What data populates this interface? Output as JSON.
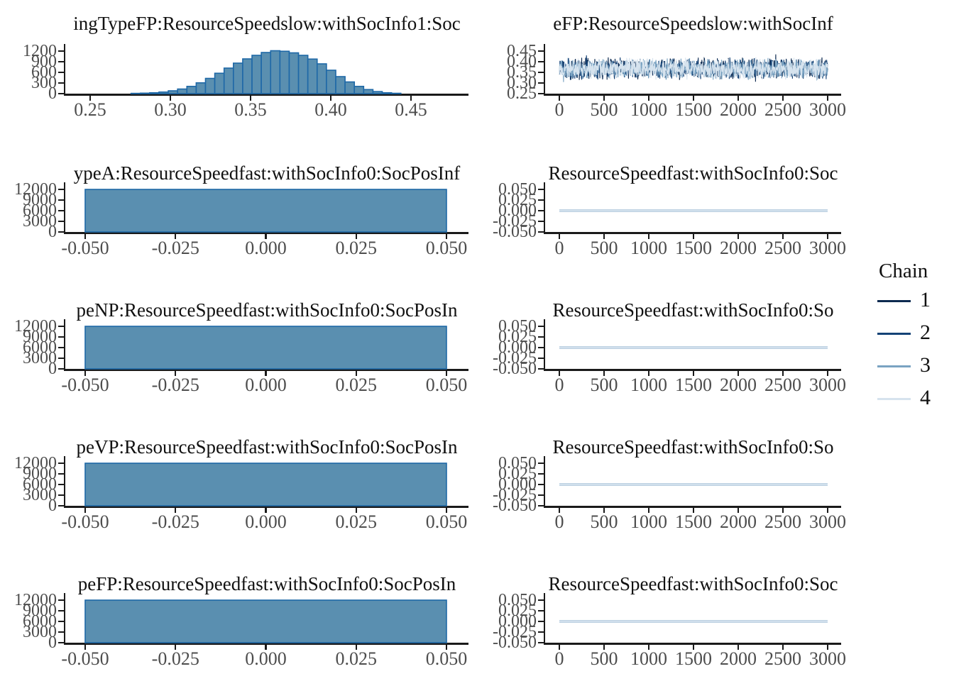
{
  "legend": {
    "title": "Chain",
    "entries": [
      {
        "label": "1",
        "color": "#0d2a50"
      },
      {
        "label": "2",
        "color": "#144276"
      },
      {
        "label": "3",
        "color": "#7aa3c2"
      },
      {
        "label": "4",
        "color": "#d6e3ee"
      }
    ]
  },
  "style": {
    "background": "#ffffff",
    "hist_fill": "#5a8fb0",
    "hist_stroke": "#1e68a7",
    "axis_color": "#1a1a1a",
    "tick_label_color": "#4d4d4d",
    "title_color": "#111111",
    "flat_line_outer": "#a9c4d9",
    "flat_line_inner": "#d6e3ee"
  },
  "chart_data": [
    {
      "panel": "row1-histogram",
      "type": "histogram",
      "title": "ingTypeFP:ResourceSpeedslow:withSocInfo1:Soc",
      "x_ticks": {
        "labels": [
          "0.25",
          "0.30",
          "0.35",
          "0.40",
          "0.45"
        ],
        "values": [
          0.25,
          0.3,
          0.35,
          0.4,
          0.45
        ]
      },
      "y_ticks": {
        "labels": [
          "1200",
          "900",
          "600",
          "300",
          "0"
        ],
        "values": [
          1200,
          900,
          600,
          300,
          0
        ]
      },
      "bins": {
        "start": 0.2755,
        "width": 0.0058,
        "counts": [
          8,
          14,
          25,
          45,
          80,
          130,
          205,
          305,
          430,
          575,
          720,
          860,
          980,
          1080,
          1160,
          1210,
          1195,
          1150,
          1080,
          975,
          840,
          660,
          480,
          330,
          205,
          115,
          58,
          25,
          10
        ]
      },
      "xlabel": "",
      "ylabel": "",
      "grid": false,
      "legend_position": "none"
    },
    {
      "panel": "row1-trace",
      "type": "line",
      "title": "eFP:ResourceSpeedslow:withSocInf",
      "x_ticks": {
        "labels": [
          "0",
          "500",
          "1000",
          "1500",
          "2000",
          "2500",
          "3000"
        ],
        "values": [
          0,
          500,
          1000,
          1500,
          2000,
          2500,
          3000
        ]
      },
      "y_ticks": {
        "labels": [
          "0.45",
          "0.40",
          "0.35",
          "0.30",
          "0.25"
        ],
        "values": [
          0.45,
          0.4,
          0.35,
          0.3,
          0.25
        ]
      },
      "series": [
        {
          "name": "1",
          "seed": 11,
          "mean": 0.367
        },
        {
          "name": "2",
          "seed": 22,
          "mean": 0.368
        },
        {
          "name": "3",
          "seed": 33,
          "mean": 0.366
        },
        {
          "name": "4",
          "seed": 44,
          "mean": 0.3675
        }
      ],
      "noise_amplitude": 0.055,
      "n_iterations": 3000,
      "visual_band": [
        0.3,
        0.435
      ],
      "xlabel": "",
      "ylabel": "",
      "grid": false,
      "legend_position": "right"
    },
    {
      "panel": "row2-histogram",
      "type": "histogram",
      "title": "ypeA:ResourceSpeedfast:withSocInfo0:SocPosInf",
      "x_ticks": {
        "labels": [
          "-0.050",
          "-0.025",
          "0.000",
          "0.025",
          "0.050"
        ],
        "values": [
          -0.05,
          -0.025,
          0.0,
          0.025,
          0.05
        ]
      },
      "y_ticks": {
        "labels": [
          "12000",
          "9000",
          "6000",
          "3000",
          "0"
        ],
        "values": [
          12000,
          9000,
          6000,
          3000,
          0
        ]
      },
      "bins": {
        "start": -0.05,
        "width": 0.1,
        "counts": [
          12000
        ]
      },
      "xlabel": "",
      "ylabel": "",
      "grid": false,
      "legend_position": "none"
    },
    {
      "panel": "row2-trace",
      "type": "line",
      "title": "ResourceSpeedfast:withSocInfo0:Soc",
      "x_ticks": {
        "labels": [
          "0",
          "500",
          "1000",
          "1500",
          "2000",
          "2500",
          "3000"
        ],
        "values": [
          0,
          500,
          1000,
          1500,
          2000,
          2500,
          3000
        ]
      },
      "y_ticks": {
        "labels": [
          "0.050",
          "0.025",
          "0.000",
          "-0.025",
          "-0.050"
        ],
        "values": [
          0.05,
          0.025,
          0.0,
          -0.025,
          -0.05
        ]
      },
      "flat_value": 0.0,
      "n_iterations": 3000,
      "xlabel": "",
      "ylabel": "",
      "grid": false,
      "legend_position": "right"
    },
    {
      "panel": "row3-histogram",
      "type": "histogram",
      "title": "peNP:ResourceSpeedfast:withSocInfo0:SocPosIn",
      "x_ticks": {
        "labels": [
          "-0.050",
          "-0.025",
          "0.000",
          "0.025",
          "0.050"
        ],
        "values": [
          -0.05,
          -0.025,
          0.0,
          0.025,
          0.05
        ]
      },
      "y_ticks": {
        "labels": [
          "12000",
          "9000",
          "6000",
          "3000",
          "0"
        ],
        "values": [
          12000,
          9000,
          6000,
          3000,
          0
        ]
      },
      "bins": {
        "start": -0.05,
        "width": 0.1,
        "counts": [
          12000
        ]
      },
      "xlabel": "",
      "ylabel": "",
      "grid": false,
      "legend_position": "none"
    },
    {
      "panel": "row3-trace",
      "type": "line",
      "title": "ResourceSpeedfast:withSocInfo0:So",
      "x_ticks": {
        "labels": [
          "0",
          "500",
          "1000",
          "1500",
          "2000",
          "2500",
          "3000"
        ],
        "values": [
          0,
          500,
          1000,
          1500,
          2000,
          2500,
          3000
        ]
      },
      "y_ticks": {
        "labels": [
          "0.050",
          "0.025",
          "0.000",
          "-0.025",
          "-0.050"
        ],
        "values": [
          0.05,
          0.025,
          0.0,
          -0.025,
          -0.05
        ]
      },
      "flat_value": 0.0,
      "n_iterations": 3000,
      "xlabel": "",
      "ylabel": "",
      "grid": false,
      "legend_position": "right"
    },
    {
      "panel": "row4-histogram",
      "type": "histogram",
      "title": "peVP:ResourceSpeedfast:withSocInfo0:SocPosIn",
      "x_ticks": {
        "labels": [
          "-0.050",
          "-0.025",
          "0.000",
          "0.025",
          "0.050"
        ],
        "values": [
          -0.05,
          -0.025,
          0.0,
          0.025,
          0.05
        ]
      },
      "y_ticks": {
        "labels": [
          "12000",
          "9000",
          "6000",
          "3000",
          "0"
        ],
        "values": [
          12000,
          9000,
          6000,
          3000,
          0
        ]
      },
      "bins": {
        "start": -0.05,
        "width": 0.1,
        "counts": [
          12000
        ]
      },
      "xlabel": "",
      "ylabel": "",
      "grid": false,
      "legend_position": "none"
    },
    {
      "panel": "row4-trace",
      "type": "line",
      "title": "ResourceSpeedfast:withSocInfo0:So",
      "x_ticks": {
        "labels": [
          "0",
          "500",
          "1000",
          "1500",
          "2000",
          "2500",
          "3000"
        ],
        "values": [
          0,
          500,
          1000,
          1500,
          2000,
          2500,
          3000
        ]
      },
      "y_ticks": {
        "labels": [
          "0.050",
          "0.025",
          "0.000",
          "-0.025",
          "-0.050"
        ],
        "values": [
          0.05,
          0.025,
          0.0,
          -0.025,
          -0.05
        ]
      },
      "flat_value": 0.0,
      "n_iterations": 3000,
      "xlabel": "",
      "ylabel": "",
      "grid": false,
      "legend_position": "right"
    },
    {
      "panel": "row5-histogram",
      "type": "histogram",
      "title": "peFP:ResourceSpeedfast:withSocInfo0:SocPosIn",
      "x_ticks": {
        "labels": [
          "-0.050",
          "-0.025",
          "0.000",
          "0.025",
          "0.050"
        ],
        "values": [
          -0.05,
          -0.025,
          0.0,
          0.025,
          0.05
        ]
      },
      "y_ticks": {
        "labels": [
          "12000",
          "9000",
          "6000",
          "3000",
          "0"
        ],
        "values": [
          12000,
          9000,
          6000,
          3000,
          0
        ]
      },
      "bins": {
        "start": -0.05,
        "width": 0.1,
        "counts": [
          12000
        ]
      },
      "xlabel": "",
      "ylabel": "",
      "grid": false,
      "legend_position": "none"
    },
    {
      "panel": "row5-trace",
      "type": "line",
      "title": "ResourceSpeedfast:withSocInfo0:Soc",
      "x_ticks": {
        "labels": [
          "0",
          "500",
          "1000",
          "1500",
          "2000",
          "2500",
          "3000"
        ],
        "values": [
          0,
          500,
          1000,
          1500,
          2000,
          2500,
          3000
        ]
      },
      "y_ticks": {
        "labels": [
          "0.050",
          "0.025",
          "0.000",
          "-0.025",
          "-0.050"
        ],
        "values": [
          0.05,
          0.025,
          0.0,
          -0.025,
          -0.05
        ]
      },
      "flat_value": 0.0,
      "n_iterations": 3000,
      "xlabel": "",
      "ylabel": "",
      "grid": false,
      "legend_position": "right"
    }
  ]
}
